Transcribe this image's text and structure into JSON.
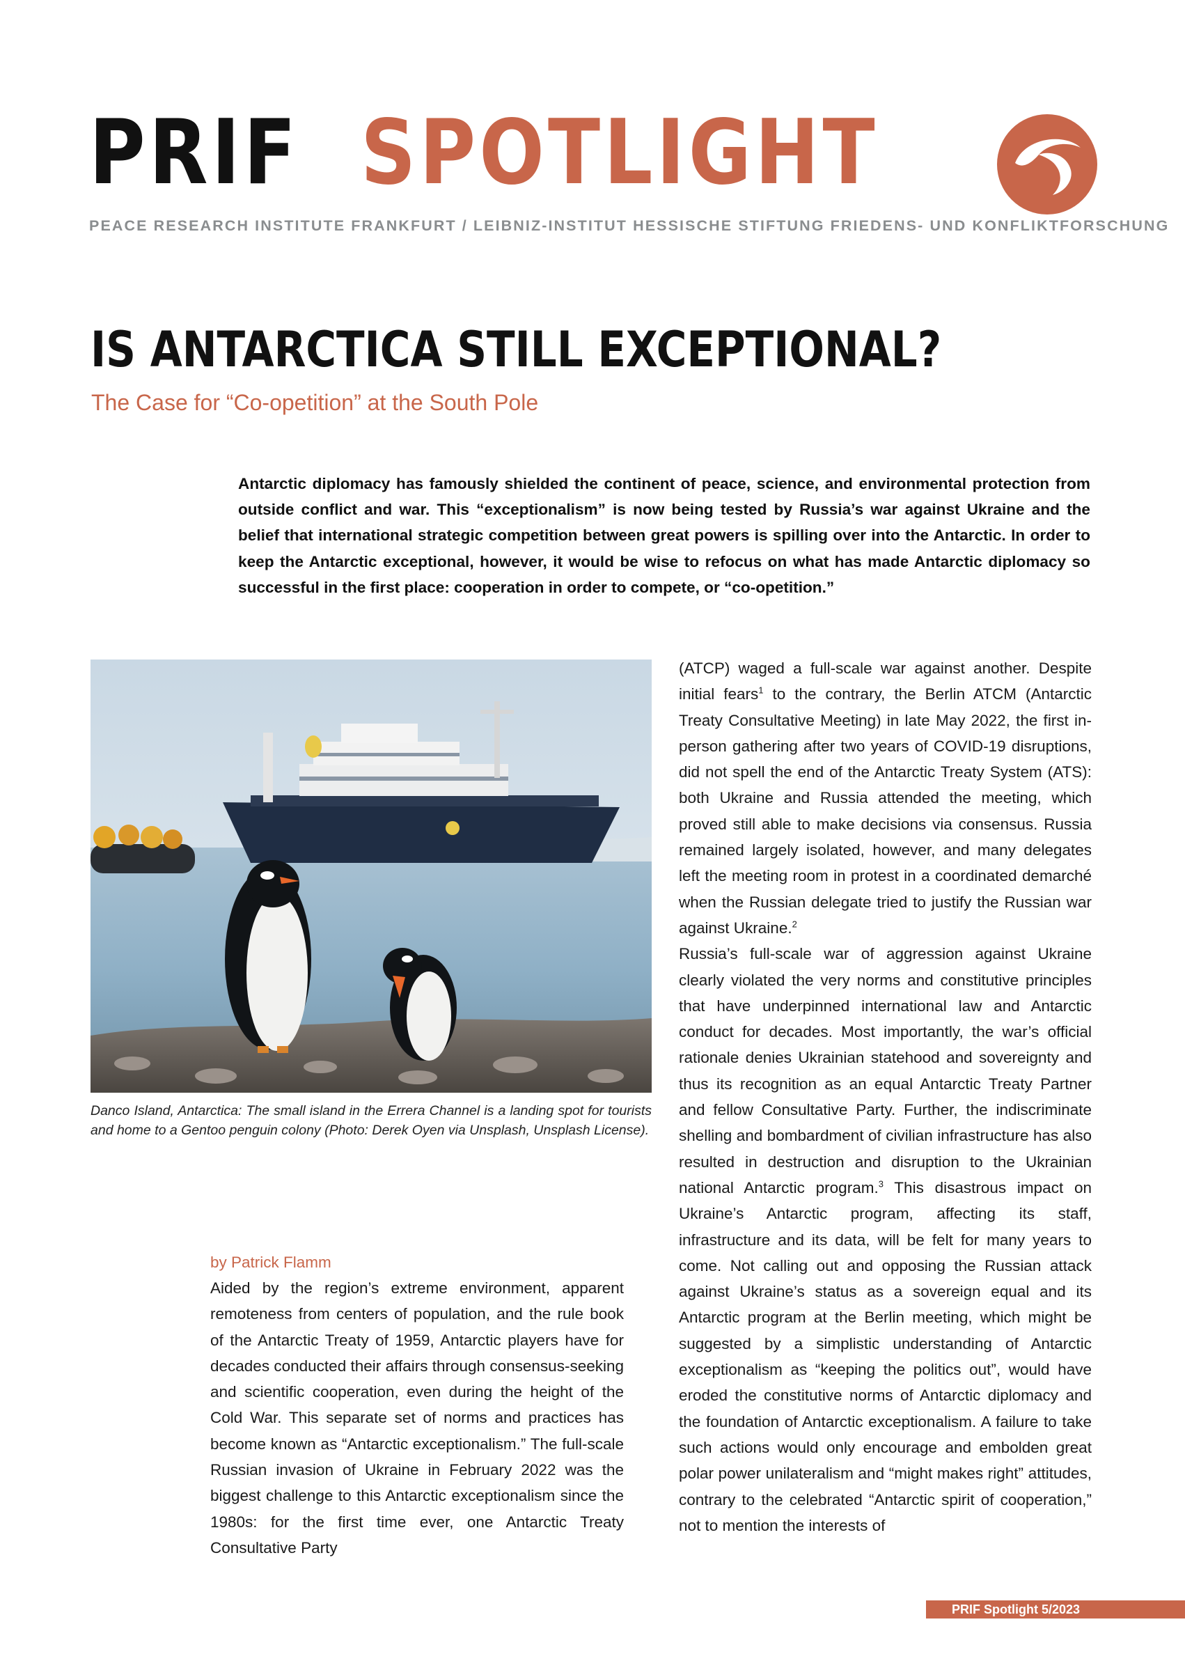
{
  "masthead": {
    "brand_black": "PRIF",
    "brand_accent": "SPOTLIGHT",
    "institute_line": "PEACE RESEARCH INSTITUTE FRANKFURT / LEIBNIZ-INSTITUT HESSISCHE STIFTUNG FRIEDENS- UND KONFLIKTFORSCHUNG",
    "logo_icon": "prif-swirl-logo-icon"
  },
  "colors": {
    "accent": "#c8664a",
    "title": "#111111",
    "institute_grey": "#8a8d8f"
  },
  "article": {
    "title": "IS ANTARCTICA STILL EXCEPTIONAL?",
    "subtitle": "The Case for “Co-opetition” at the South Pole",
    "lead": "Antarctic diplomacy has famously shielded the continent of peace, science, and environmental protection from outside conflict and war. This “exceptionalism” is now being tested by Russia’s war against Ukraine and the belief that international strategic competition between great powers is spilling over into the Antarctic. In order to keep the Antarctic exceptional, however, it would be wise to refocus on what has made Antarctic diplomacy so successful in the first place: cooperation in order to compete, or “co-opetition.”",
    "photo_caption": "Danco Island, Antarctica: The small island in the Errera Channel is a landing spot for tourists and home to a Gentoo penguin colony (Photo: Derek Oyen via Unsplash, Unsplash License).",
    "byline": "by Patrick Flamm",
    "left_column": "Aided by the region’s extreme environment, apparent remoteness from centers of population, and the rule book of the Antarctic Treaty of 1959, Antarctic players have for decades conducted their affairs through consensus-seeking and scientific cooperation, even during the height of the Cold War. This separate set of norms and practices has become known as “Antarctic exceptionalism.” The full-scale Russian invasion of Ukraine in February 2022 was the biggest challenge to this Antarctic exceptionalism since the 1980s: for the first time ever, one Antarctic Treaty Consultative Party",
    "right_p1_a": "(ATCP) waged a full-scale war against another. Despite initial fears",
    "ref1": "1",
    "right_p1_b": " to the contrary, the Berlin ATCM (Antarctic Treaty Consultative Meeting) in late May 2022, the first in-person gathering after two years of COVID-19 disruptions, did not spell the end of the Antarctic Treaty System (ATS): both Ukraine and Russia attended the meeting, which proved still able to make decisions via consensus. Russia remained largely isolated, however, and many delegates left the meeting room in protest in a coordinated demarché when the Russian delegate tried to justify the Russian war against Ukraine.",
    "ref2": "2",
    "right_p2_a": "Russia’s full-scale war of aggression against Ukraine clearly violated the very norms and constitutive principles that have underpinned international law and Antarctic conduct for decades. Most importantly, the war’s official rationale denies Ukrainian statehood and sovereignty and thus its recognition as an equal Antarctic Treaty Partner and fellow Consultative Party. Further, the indiscriminate shelling and bombardment of civilian infrastructure has also resulted in destruction and disruption to the Ukrainian national Antarctic program.",
    "ref3": "3",
    "right_p2_b": " This disastrous impact on Ukraine’s Antarctic program, affecting its staff, infrastructure and its data, will be felt for many years to come. Not calling out and opposing the Russian attack against Ukraine’s status as a sovereign equal and its Antarctic program at the Berlin meeting, which might be suggested by a simplistic understanding of Antarctic exceptionalism as “keeping the politics out”, would have eroded the constitutive norms of Antarctic diplomacy and the foundation of Antarctic exceptionalism. A failure to take such actions would only encourage and embolden great polar power unilateralism and “might makes right” attitudes, contrary to the celebrated “Antarctic spirit of cooperation,” not to mention the interests of"
  },
  "footer": {
    "label": "PRIF Spotlight 5/2023"
  }
}
